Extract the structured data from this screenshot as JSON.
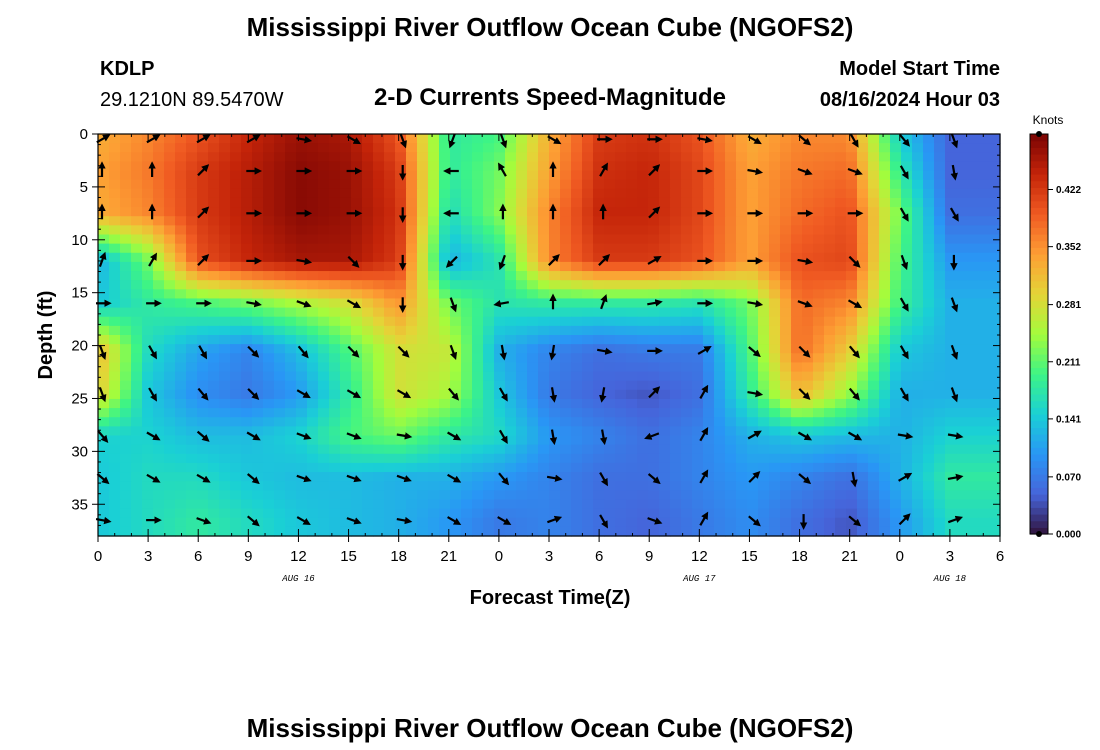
{
  "header": {
    "title": "Mississippi River Outflow Ocean Cube (NGOFS2)",
    "station": "KDLP",
    "coords": "29.1210N  89.5470W",
    "subtitle": "2-D Currents Speed-Magnitude",
    "model_start_label": "Model Start Time",
    "model_start_value": "08/16/2024 Hour 03"
  },
  "footer": {
    "title": "Mississippi River Outflow Ocean Cube (NGOFS2)"
  },
  "chart_data": {
    "type": "heatmap",
    "title": "2-D Currents Speed-Magnitude",
    "xlabel": "Forecast Time(Z)",
    "ylabel": "Depth (ft)",
    "xlim": [
      0,
      54
    ],
    "ylim": [
      38,
      0
    ],
    "x_ticks": [
      0,
      3,
      6,
      9,
      12,
      15,
      18,
      21,
      24,
      27,
      30,
      33,
      36,
      39,
      42,
      45,
      48,
      51,
      54
    ],
    "x_tick_labels": [
      "0",
      "3",
      "6",
      "9",
      "12",
      "15",
      "18",
      "21",
      "0",
      "3",
      "6",
      "9",
      "12",
      "15",
      "18",
      "21",
      "0",
      "3",
      "6"
    ],
    "y_ticks": [
      0,
      5,
      10,
      15,
      20,
      25,
      30,
      35
    ],
    "y_tick_labels": [
      "0",
      "5",
      "10",
      "15",
      "20",
      "25",
      "30",
      "35"
    ],
    "date_labels": [
      {
        "x": 12,
        "label": "AUG 16"
      },
      {
        "x": 36,
        "label": "AUG 17"
      },
      {
        "x": 51,
        "label": "AUG 18"
      }
    ],
    "colorbar": {
      "unit": "Knots",
      "min": 0,
      "max": 0.49,
      "ticks": [
        0.0,
        0.07,
        0.141,
        0.211,
        0.281,
        0.352,
        0.422
      ],
      "tick_labels": [
        "0.000",
        "0.070",
        "0.141",
        "0.211",
        "0.281",
        "0.352",
        "0.422"
      ]
    },
    "arrow_times": [
      0,
      3,
      6,
      9,
      12,
      15,
      18,
      21,
      24,
      27,
      30,
      33,
      36,
      39,
      42,
      45,
      48,
      51
    ],
    "arrow_depths": [
      0.5,
      3.5,
      7.5,
      12,
      16,
      20.5,
      24.5,
      28.5,
      32.5,
      36.5
    ],
    "speed_grid": [
      [
        0.33,
        0.36,
        0.4,
        0.44,
        0.47,
        0.46,
        0.4,
        0.18,
        0.2,
        0.33,
        0.42,
        0.43,
        0.4,
        0.33,
        0.36,
        0.36,
        0.15,
        0.05
      ],
      [
        0.34,
        0.37,
        0.42,
        0.45,
        0.48,
        0.47,
        0.42,
        0.18,
        0.22,
        0.34,
        0.43,
        0.44,
        0.41,
        0.34,
        0.37,
        0.38,
        0.18,
        0.05
      ],
      [
        0.33,
        0.36,
        0.42,
        0.45,
        0.48,
        0.47,
        0.43,
        0.16,
        0.23,
        0.36,
        0.44,
        0.44,
        0.41,
        0.34,
        0.38,
        0.4,
        0.22,
        0.06
      ],
      [
        0.12,
        0.22,
        0.4,
        0.44,
        0.46,
        0.46,
        0.42,
        0.12,
        0.17,
        0.36,
        0.42,
        0.42,
        0.4,
        0.34,
        0.4,
        0.41,
        0.2,
        0.1
      ],
      [
        0.14,
        0.18,
        0.2,
        0.22,
        0.25,
        0.28,
        0.35,
        0.22,
        0.17,
        0.18,
        0.18,
        0.18,
        0.17,
        0.22,
        0.38,
        0.36,
        0.19,
        0.12
      ],
      [
        0.32,
        0.16,
        0.11,
        0.08,
        0.13,
        0.2,
        0.28,
        0.27,
        0.12,
        0.08,
        0.06,
        0.07,
        0.07,
        0.2,
        0.38,
        0.3,
        0.14,
        0.12
      ],
      [
        0.3,
        0.14,
        0.09,
        0.07,
        0.1,
        0.18,
        0.28,
        0.25,
        0.14,
        0.07,
        0.05,
        0.04,
        0.06,
        0.18,
        0.32,
        0.24,
        0.12,
        0.12
      ],
      [
        0.15,
        0.15,
        0.13,
        0.13,
        0.15,
        0.2,
        0.22,
        0.18,
        0.16,
        0.1,
        0.08,
        0.06,
        0.08,
        0.12,
        0.14,
        0.13,
        0.12,
        0.15
      ],
      [
        0.14,
        0.16,
        0.16,
        0.14,
        0.13,
        0.13,
        0.12,
        0.12,
        0.1,
        0.08,
        0.06,
        0.06,
        0.08,
        0.1,
        0.08,
        0.06,
        0.12,
        0.18
      ],
      [
        0.14,
        0.16,
        0.18,
        0.16,
        0.14,
        0.13,
        0.12,
        0.1,
        0.07,
        0.08,
        0.06,
        0.05,
        0.07,
        0.09,
        0.06,
        0.04,
        0.1,
        0.16
      ]
    ],
    "direction_grid": [
      [
        60,
        60,
        60,
        60,
        100,
        120,
        160,
        200,
        160,
        120,
        90,
        90,
        100,
        120,
        130,
        150,
        140,
        160
      ],
      [
        0,
        0,
        45,
        90,
        90,
        90,
        180,
        270,
        330,
        0,
        30,
        45,
        90,
        100,
        110,
        110,
        150,
        170
      ],
      [
        0,
        0,
        45,
        90,
        90,
        90,
        180,
        270,
        0,
        0,
        0,
        45,
        90,
        90,
        90,
        90,
        150,
        150
      ],
      [
        20,
        30,
        45,
        90,
        100,
        135,
        180,
        225,
        200,
        45,
        45,
        60,
        90,
        90,
        100,
        135,
        160,
        180
      ],
      [
        90,
        90,
        90,
        100,
        110,
        120,
        180,
        160,
        260,
        0,
        20,
        80,
        90,
        100,
        110,
        120,
        150,
        160
      ],
      [
        160,
        150,
        150,
        135,
        140,
        135,
        135,
        160,
        170,
        190,
        100,
        90,
        60,
        130,
        135,
        140,
        150,
        160
      ],
      [
        160,
        150,
        140,
        135,
        120,
        120,
        120,
        140,
        150,
        170,
        190,
        45,
        30,
        100,
        135,
        140,
        150,
        160
      ],
      [
        140,
        120,
        130,
        120,
        110,
        110,
        100,
        120,
        150,
        170,
        170,
        250,
        30,
        60,
        120,
        120,
        100,
        100
      ],
      [
        130,
        120,
        120,
        130,
        110,
        110,
        110,
        120,
        140,
        100,
        150,
        130,
        30,
        45,
        130,
        170,
        60,
        80
      ],
      [
        100,
        90,
        110,
        130,
        120,
        110,
        100,
        120,
        120,
        70,
        150,
        110,
        30,
        130,
        180,
        130,
        45,
        70
      ]
    ]
  }
}
